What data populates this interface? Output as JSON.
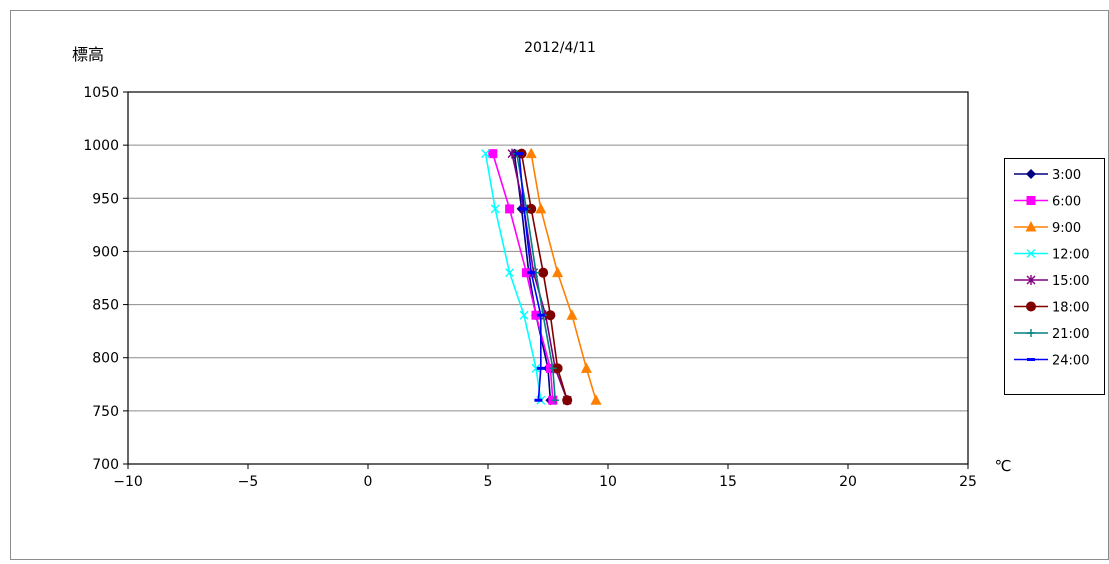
{
  "chart_data": {
    "type": "line",
    "title": "2012/4/11",
    "ylabel": "標高",
    "xunit": "℃",
    "xlim": [
      -10,
      25
    ],
    "ylim": [
      700,
      1050
    ],
    "xticks": [
      -10,
      -5,
      0,
      5,
      10,
      15,
      20,
      25
    ],
    "yticks": [
      700,
      750,
      800,
      850,
      900,
      950,
      1000,
      1050
    ],
    "grid": "horizontal",
    "legend": "right",
    "series": [
      {
        "name": "3:00",
        "color": "#000080",
        "marker": "diamond",
        "points": [
          [
            6.1,
            992
          ],
          [
            6.4,
            940
          ],
          [
            6.7,
            880
          ],
          [
            7.0,
            840
          ],
          [
            7.5,
            790
          ],
          [
            7.6,
            760
          ]
        ]
      },
      {
        "name": "6:00",
        "color": "#ff00ff",
        "marker": "square",
        "points": [
          [
            5.2,
            992
          ],
          [
            5.9,
            940
          ],
          [
            6.6,
            880
          ],
          [
            7.0,
            840
          ],
          [
            7.6,
            790
          ],
          [
            7.7,
            760
          ]
        ]
      },
      {
        "name": "9:00",
        "color": "#ff8000",
        "marker": "triangle",
        "points": [
          [
            6.8,
            992
          ],
          [
            7.2,
            940
          ],
          [
            7.9,
            880
          ],
          [
            8.5,
            840
          ],
          [
            9.1,
            790
          ],
          [
            9.5,
            760
          ]
        ]
      },
      {
        "name": "12:00",
        "color": "#00ffff",
        "marker": "x",
        "points": [
          [
            4.9,
            992
          ],
          [
            5.3,
            940
          ],
          [
            5.9,
            880
          ],
          [
            6.5,
            840
          ],
          [
            7.0,
            790
          ],
          [
            7.2,
            760
          ]
        ]
      },
      {
        "name": "15:00",
        "color": "#800080",
        "marker": "asterisk",
        "points": [
          [
            6.0,
            992
          ],
          [
            6.5,
            940
          ],
          [
            6.9,
            880
          ],
          [
            7.4,
            840
          ],
          [
            7.8,
            790
          ],
          [
            8.3,
            760
          ]
        ]
      },
      {
        "name": "18:00",
        "color": "#800000",
        "marker": "circle",
        "points": [
          [
            6.4,
            992
          ],
          [
            6.8,
            940
          ],
          [
            7.3,
            880
          ],
          [
            7.6,
            840
          ],
          [
            7.9,
            790
          ],
          [
            8.3,
            760
          ]
        ]
      },
      {
        "name": "21:00",
        "color": "#008080",
        "marker": "plus",
        "points": [
          [
            6.2,
            992
          ],
          [
            6.6,
            940
          ],
          [
            7.0,
            880
          ],
          [
            7.3,
            840
          ],
          [
            7.7,
            790
          ],
          [
            7.8,
            760
          ]
        ]
      },
      {
        "name": "24:00",
        "color": "#0000ff",
        "marker": "dash",
        "points": [
          [
            6.3,
            992
          ],
          [
            6.5,
            940
          ],
          [
            6.8,
            880
          ],
          [
            7.2,
            840
          ],
          [
            7.2,
            790
          ],
          [
            7.1,
            760
          ]
        ]
      }
    ]
  }
}
